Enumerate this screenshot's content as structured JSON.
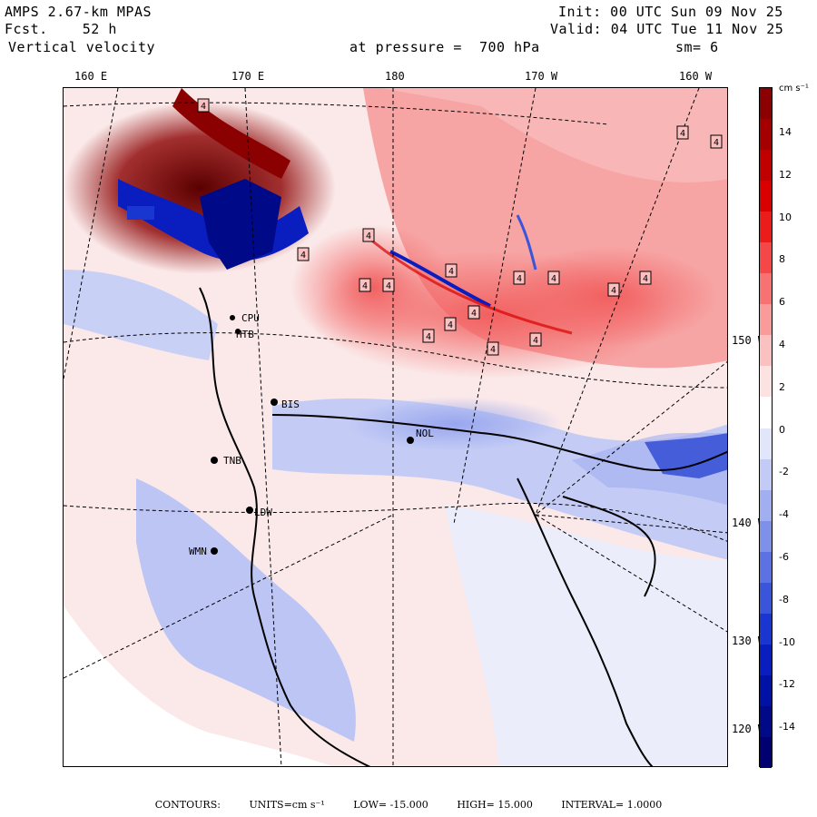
{
  "header": {
    "model": "AMPS 2.67-km MPAS",
    "forecast_label": "Fcst.",
    "forecast_value": "52 h",
    "field": "Vertical velocity",
    "init": "Init: 00 UTC Sun 09 Nov 25",
    "valid": "Valid: 04 UTC Tue 11 Nov 25",
    "level": "at pressure =  700 hPa",
    "smoothing": "sm= 6"
  },
  "longitude_labels": [
    "160 E",
    "170 E",
    "180",
    "170 W",
    "160 W"
  ],
  "latitude_labels": [
    "150 W",
    "140 W",
    "130 W",
    "120 W"
  ],
  "stations": [
    "BIS",
    "NOL",
    "TNB",
    "LDW",
    "WMN",
    "CPU",
    "HTB"
  ],
  "contour_value_label": "4",
  "colorbar": {
    "units_label": "cm s⁻¹",
    "ticks": [
      "14",
      "12",
      "10",
      "8",
      "6",
      "4",
      "2",
      "0",
      "-2",
      "-4",
      "-6",
      "-8",
      "-10",
      "-12",
      "-14"
    ],
    "colors": [
      "#8b0000",
      "#a50000",
      "#c00000",
      "#d80000",
      "#ea1c1c",
      "#f44747",
      "#f77272",
      "#f99b9b",
      "#fbc0c0",
      "#fde2e2",
      "#ffffff",
      "#e2e6fb",
      "#c2cbf6",
      "#a1aef0",
      "#7f90e9",
      "#5c72e2",
      "#3a54da",
      "#1a36d0",
      "#0a1ec0",
      "#0012a6",
      "#000a88",
      "#000070"
    ]
  },
  "footer": {
    "contours": "CONTOURS:",
    "units": "UNITS=cm s⁻¹",
    "low": "LOW=  -15.000",
    "high": "HIGH=  15.000",
    "interval": "INTERVAL=   1.0000"
  }
}
